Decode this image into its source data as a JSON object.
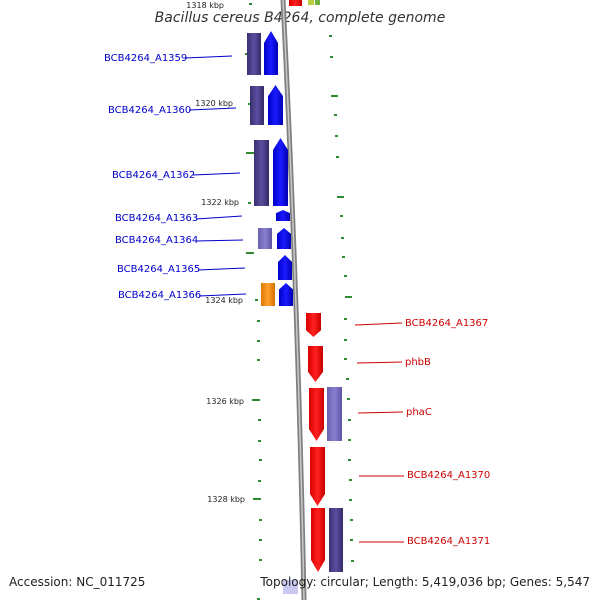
{
  "title": "Bacillus cereus B4264, complete genome",
  "footer": {
    "accession": "Accession: NC_011725",
    "summary": "Topology: circular; Length: 5,419,036 bp; Genes: 5,547"
  },
  "colors": {
    "forward_cds": "#0000ff",
    "reverse_cds": "#ff0000",
    "forward_label": "#0000cc",
    "reverse_label": "#cc0000",
    "rna": "#ff8c00",
    "orf": "#4b3f8c",
    "tick": "#2e8b2e",
    "backbone": "#888888"
  },
  "ruler": {
    "partial_label": "1318 kbp",
    "labels": [
      "1320 kbp",
      "1322 kbp",
      "1324 kbp",
      "1326 kbp",
      "1328 kbp"
    ]
  },
  "forward_genes": [
    {
      "label": "BCB4264_A1359"
    },
    {
      "label": "BCB4264_A1360"
    },
    {
      "label": "BCB4264_A1362"
    },
    {
      "label": "BCB4264_A1363"
    },
    {
      "label": "BCB4264_A1364"
    },
    {
      "label": "BCB4264_A1365"
    },
    {
      "label": "BCB4264_A1366"
    }
  ],
  "reverse_genes": [
    {
      "label": "BCB4264_A1367"
    },
    {
      "label": "phbB"
    },
    {
      "label": "phaC"
    },
    {
      "label": "BCB4264_A1370"
    },
    {
      "label": "BCB4264_A1371"
    }
  ]
}
